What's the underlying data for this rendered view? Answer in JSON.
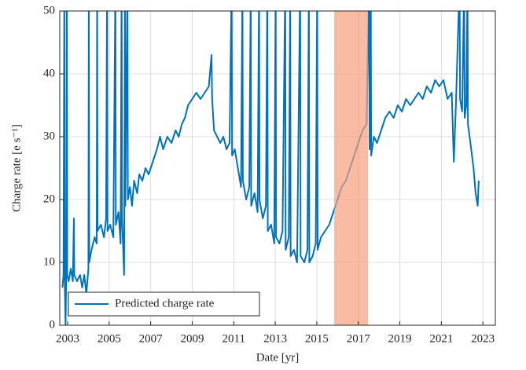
{
  "chart_data": {
    "type": "line",
    "xlabel": "Date [yr]",
    "ylabel": "Charge rate [e s⁻¹]",
    "xlim": [
      2002.62,
      2023.6
    ],
    "xticks": [
      2003,
      2005,
      2007,
      2009,
      2011,
      2013,
      2015,
      2017,
      2019,
      2021,
      2023
    ],
    "ylim": [
      0,
      50
    ],
    "yticks": [
      0,
      10,
      20,
      30,
      40,
      50
    ],
    "grid": true,
    "legend": "lower left",
    "shaded_region": {
      "x": [
        2015.84,
        2017.47
      ],
      "color": "#f7a07a"
    },
    "x": [
      2002.75,
      2002.8,
      2002.84,
      2002.86,
      2002.9,
      2002.93,
      2002.96,
      2002.98,
      2003.05,
      2003.15,
      2003.25,
      2003.3,
      2003.32,
      2003.45,
      2003.6,
      2003.7,
      2003.8,
      2003.9,
      2004.0,
      2004.02,
      2004.04,
      2004.15,
      2004.3,
      2004.4,
      2004.42,
      2004.44,
      2004.6,
      2004.75,
      2004.85,
      2004.9,
      2004.92,
      2005.05,
      2005.2,
      2005.3,
      2005.32,
      2005.45,
      2005.55,
      2005.6,
      2005.62,
      2005.72,
      2005.76,
      2005.78,
      2005.88,
      2005.9,
      2006.0,
      2006.1,
      2006.2,
      2006.35,
      2006.45,
      2006.6,
      2006.75,
      2006.9,
      2007.1,
      2007.3,
      2007.45,
      2007.6,
      2007.8,
      2008.0,
      2008.2,
      2008.35,
      2008.5,
      2008.65,
      2008.8,
      2009.0,
      2009.2,
      2009.4,
      2009.6,
      2009.8,
      2009.93,
      2009.96,
      2010.05,
      2010.2,
      2010.35,
      2010.5,
      2010.65,
      2010.8,
      2010.9,
      2010.92,
      2011.05,
      2011.2,
      2011.35,
      2011.42,
      2011.44,
      2011.6,
      2011.75,
      2011.82,
      2011.84,
      2012.0,
      2012.15,
      2012.22,
      2012.24,
      2012.4,
      2012.55,
      2012.62,
      2012.64,
      2012.8,
      2012.95,
      2013.02,
      2013.04,
      2013.2,
      2013.35,
      2013.48,
      2013.5,
      2013.65,
      2013.72,
      2013.74,
      2013.9,
      2014.05,
      2014.2,
      2014.22,
      2014.4,
      2014.55,
      2014.62,
      2014.64,
      2014.8,
      2014.95,
      2015.02,
      2015.04,
      2015.2,
      2015.4,
      2015.6,
      2015.8,
      2016.0,
      2016.2,
      2016.4,
      2016.6,
      2016.8,
      2017.0,
      2017.2,
      2017.4,
      2017.52,
      2017.54,
      2017.6,
      2017.62,
      2017.75,
      2017.9,
      2018.1,
      2018.3,
      2018.5,
      2018.7,
      2018.9,
      2019.1,
      2019.3,
      2019.5,
      2019.7,
      2019.9,
      2020.1,
      2020.3,
      2020.5,
      2020.7,
      2020.9,
      2021.1,
      2021.3,
      2021.5,
      2021.6,
      2021.7,
      2021.88,
      2021.9,
      2022.0,
      2022.1,
      2022.12,
      2022.2,
      2022.26,
      2022.28,
      2022.4,
      2022.55,
      2022.65,
      2022.75,
      2022.8
    ],
    "series": [
      {
        "name": "Predicted charge rate",
        "color": "#0072bd",
        "values": [
          6,
          8,
          55,
          7,
          0,
          8,
          55,
          8,
          7,
          9,
          7,
          17,
          8,
          7,
          8,
          6,
          8,
          5,
          9,
          55,
          10,
          12,
          14,
          13,
          55,
          15,
          16,
          14,
          17,
          55,
          15,
          16,
          14,
          55,
          16,
          18,
          13,
          55,
          17,
          8,
          55,
          19,
          55,
          20,
          22,
          19,
          23,
          21,
          24,
          23,
          25,
          24,
          26,
          28,
          30,
          28,
          30,
          29,
          31,
          30,
          32,
          33,
          35,
          36,
          37,
          36,
          37,
          38,
          43,
          36,
          31,
          30,
          29,
          30,
          28,
          29,
          55,
          27,
          28,
          25,
          22,
          55,
          23,
          20,
          22,
          55,
          19,
          21,
          18,
          55,
          20,
          17,
          19,
          55,
          15,
          16,
          13,
          55,
          14,
          13,
          15,
          55,
          12,
          14,
          55,
          11,
          12,
          10,
          55,
          11,
          10,
          12,
          55,
          10,
          11,
          13,
          55,
          12,
          14,
          15,
          16,
          18,
          20,
          22,
          23,
          25,
          27,
          29,
          31,
          32,
          55,
          28,
          55,
          27,
          30,
          29,
          31,
          33,
          34,
          33,
          35,
          34,
          36,
          35,
          36,
          37,
          36,
          38,
          37,
          39,
          38,
          39,
          36,
          37,
          26,
          35,
          55,
          36,
          34,
          55,
          33,
          35,
          55,
          32,
          29,
          25,
          21,
          19,
          23
        ]
      }
    ]
  }
}
